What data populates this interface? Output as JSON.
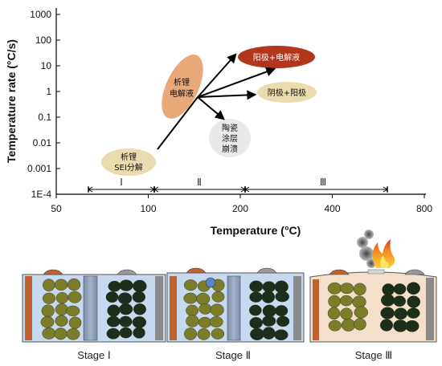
{
  "axes": {
    "ylabel": "Temperature rate (°C/s)",
    "xlabel": "Temperature (°C)",
    "yticks": [
      "1000",
      "100",
      "10",
      "1",
      "0.1",
      "0.01",
      "0.001",
      "1E-4"
    ],
    "xticks": [
      "50",
      "100",
      "200",
      "400",
      "800"
    ]
  },
  "regions": [
    {
      "label": "Ⅰ"
    },
    {
      "label": "Ⅱ"
    },
    {
      "label": "Ⅲ"
    }
  ],
  "labels": {
    "sei": [
      "析锂",
      "SEI分解"
    ],
    "li_electrolyte": [
      "析锂",
      "电解液"
    ],
    "ceramic": [
      "陶瓷",
      "涂层",
      "崩溃"
    ],
    "anode_electrolyte": "阳极+电解液",
    "anode_cathode": "阴极+阳极"
  },
  "stages": [
    {
      "label": "Stage Ⅰ"
    },
    {
      "label": "Stage Ⅱ"
    },
    {
      "label": "Stage Ⅲ"
    }
  ],
  "colors": {
    "sei_fill": "#e9dcae",
    "li_fill": "#e9a877",
    "anode_electrolyte_fill": "#b0361c",
    "anode_cathode_fill": "#e9dcae",
    "ceramic_fill": "#e9e9e9",
    "cell_bg": "#c6d9ef",
    "olive_particle": "#7b7d2a",
    "dark_particle": "#1d2f1c",
    "copper": "#c0612e",
    "steel": "#8a8a8a"
  }
}
